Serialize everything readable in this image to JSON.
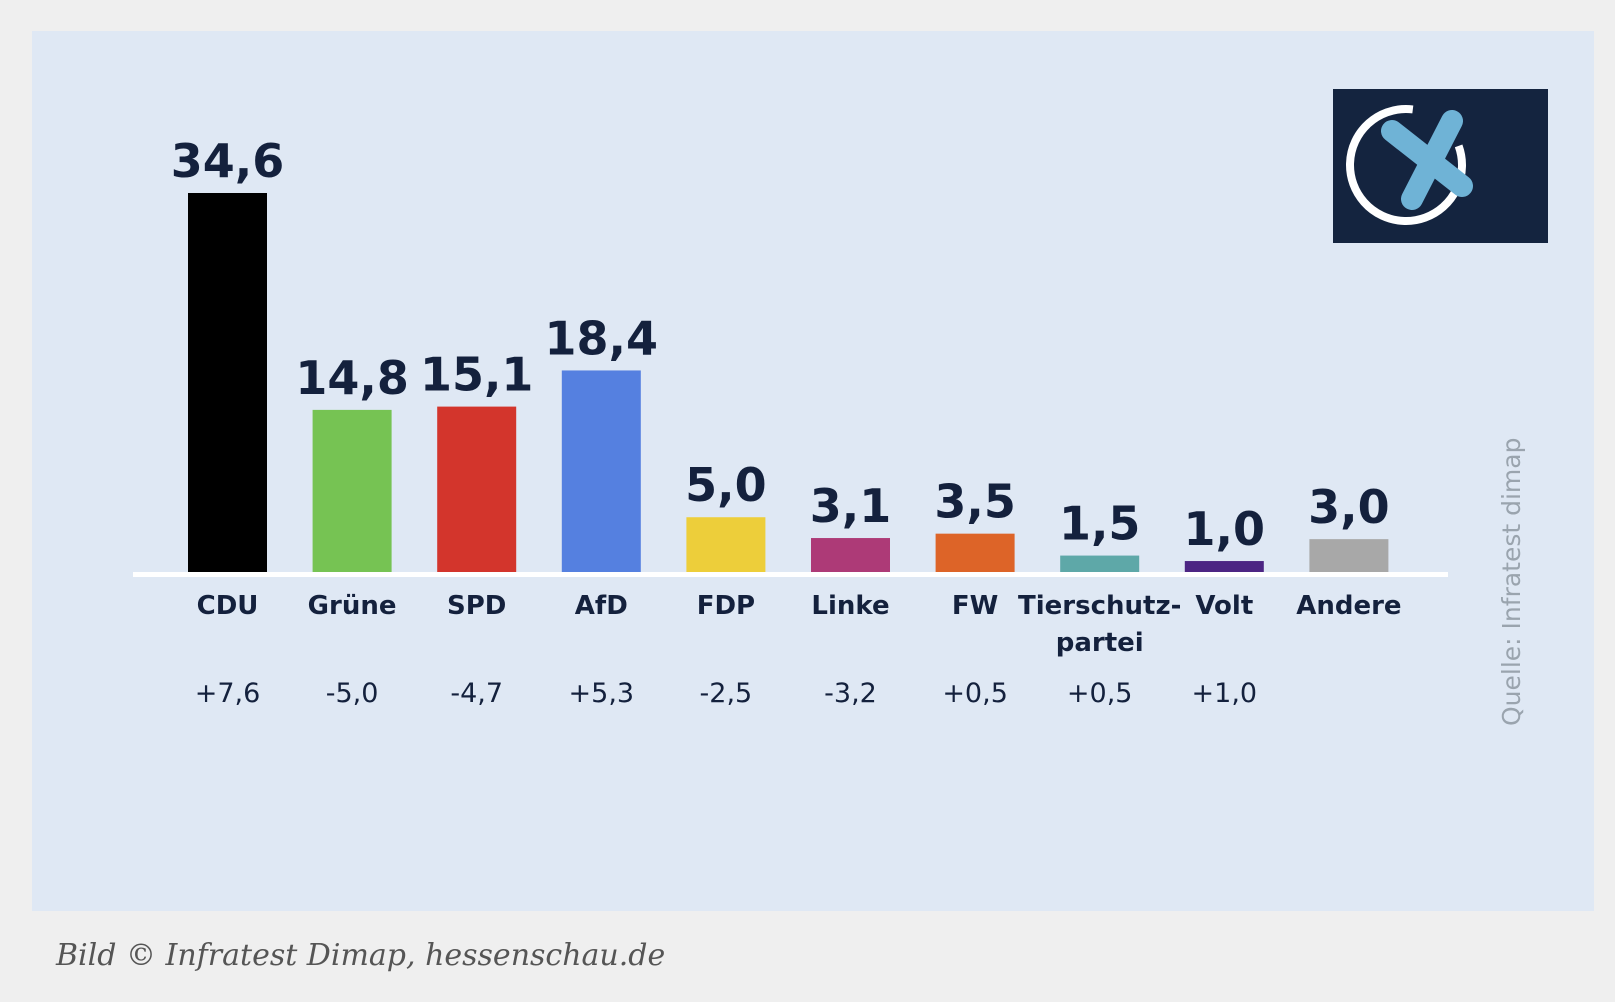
{
  "chart_data": {
    "type": "bar",
    "categories": [
      "CDU",
      "Grüne",
      "SPD",
      "AfD",
      "FDP",
      "Linke",
      "FW",
      "Tierschutz-partei",
      "Volt",
      "Andere"
    ],
    "category_lines": [
      [
        "CDU"
      ],
      [
        "Grüne"
      ],
      [
        "SPD"
      ],
      [
        "AfD"
      ],
      [
        "FDP"
      ],
      [
        "Linke"
      ],
      [
        "FW"
      ],
      [
        "Tierschutz-",
        "partei"
      ],
      [
        "Volt"
      ],
      [
        "Andere"
      ]
    ],
    "values": [
      34.6,
      14.8,
      15.1,
      18.4,
      5.0,
      3.1,
      3.5,
      1.5,
      1.0,
      3.0
    ],
    "value_labels": [
      "34,6",
      "14,8",
      "15,1",
      "18,4",
      "5,0",
      "3,1",
      "3,5",
      "1,5",
      "1,0",
      "3,0"
    ],
    "changes": [
      "+7,6",
      "-5,0",
      "-4,7",
      "+5,3",
      "-2,5",
      "-3,2",
      "+0,5",
      "+0,5",
      "+1,0",
      ""
    ],
    "colors": [
      "#000000",
      "#76c353",
      "#d3352c",
      "#5580e0",
      "#edce3a",
      "#ad3a77",
      "#dd6428",
      "#5ea8a8",
      "#4c2583",
      "#a8a8a8"
    ],
    "ylim": [
      0,
      34.6
    ],
    "grid": false
  },
  "source": "Quelle:  Infratest dimap",
  "caption": "Bild © Infratest Dimap, hessenschau.de",
  "logo": {
    "icon": "ballot-cross-icon",
    "background": "#14243f",
    "cross_color": "#6fb3d6",
    "circle_color": "#ffffff"
  }
}
